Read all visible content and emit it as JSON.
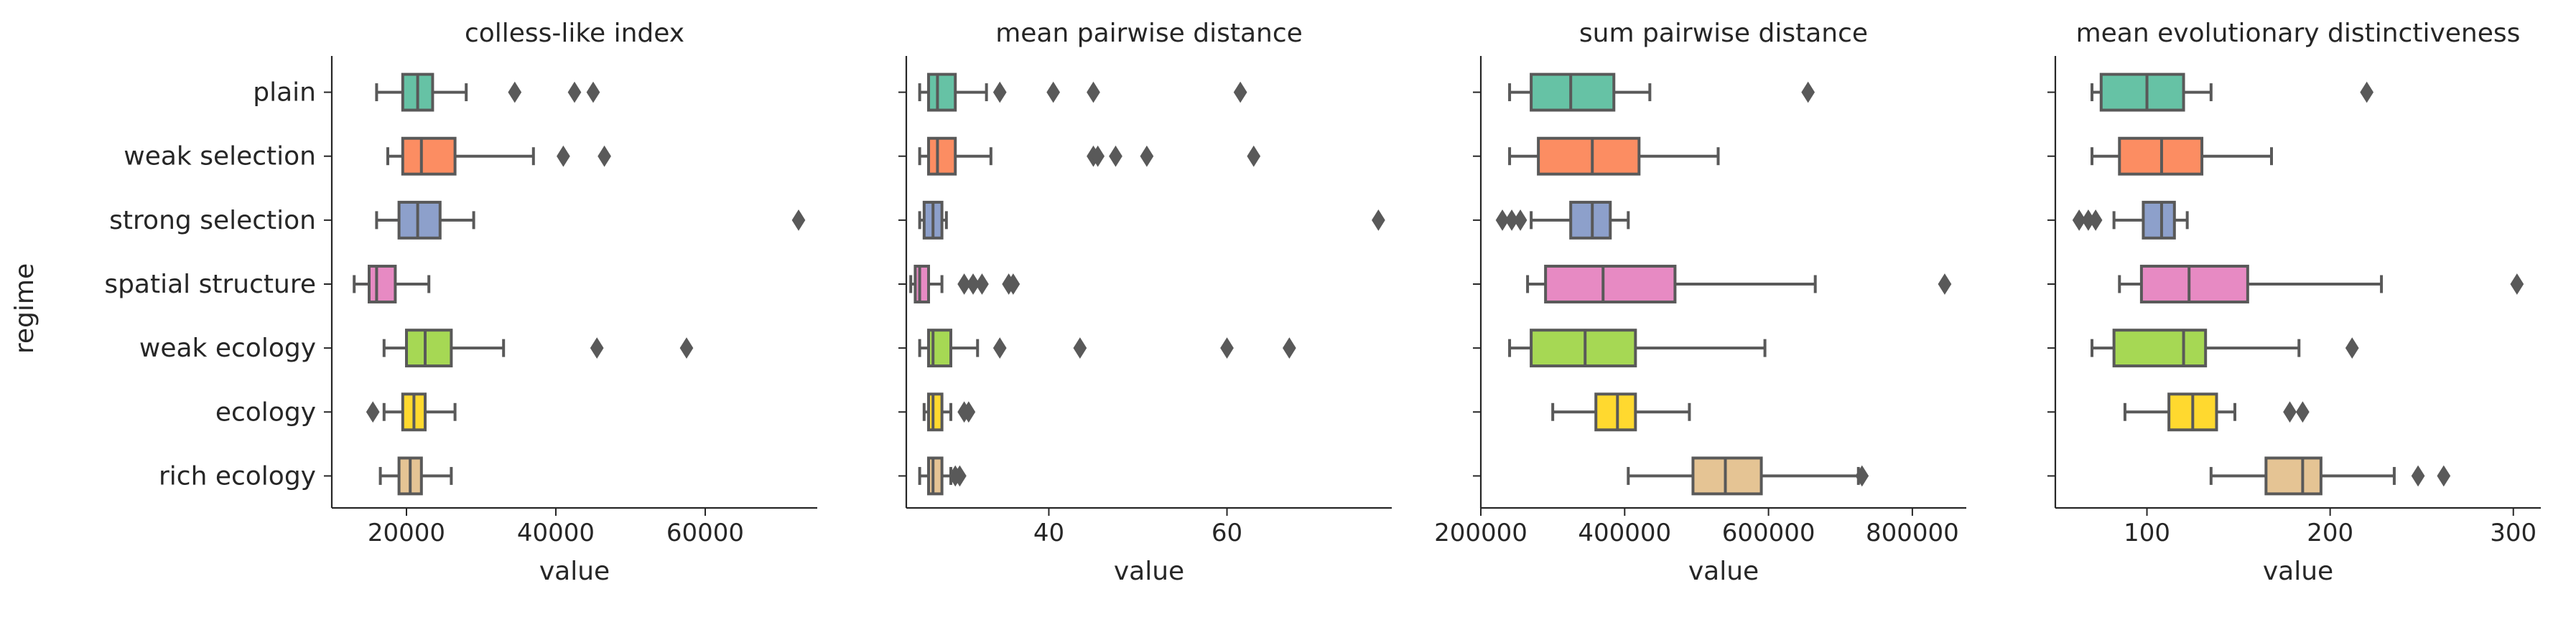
{
  "figure": {
    "ylabel": "regime",
    "categories": [
      "plain",
      "weak selection",
      "strong selection",
      "spatial structure",
      "weak ecology",
      "ecology",
      "rich ecology"
    ],
    "palette": [
      "#66c2a5",
      "#fc8d62",
      "#8da0cb",
      "#e78ac3",
      "#a6d854",
      "#ffd92f",
      "#e5c494"
    ],
    "line_color": "#595959"
  },
  "chart_data": [
    {
      "type": "box",
      "title": "colless-like index",
      "xlabel": "value",
      "xlim": [
        10000,
        75000
      ],
      "xticks": [
        20000,
        40000,
        60000
      ],
      "xtick_labels": [
        "20000",
        "40000",
        "60000"
      ],
      "boxes": [
        {
          "category": "plain",
          "whislo": 16000,
          "q1": 19500,
          "med": 21500,
          "q3": 23500,
          "whishi": 28000,
          "fliers": [
            34500,
            42500,
            45000
          ]
        },
        {
          "category": "weak selection",
          "whislo": 17500,
          "q1": 19500,
          "med": 22000,
          "q3": 26500,
          "whishi": 37000,
          "fliers": [
            41000,
            46500
          ]
        },
        {
          "category": "strong selection",
          "whislo": 16000,
          "q1": 19000,
          "med": 21500,
          "q3": 24500,
          "whishi": 29000,
          "fliers": [
            72500
          ]
        },
        {
          "category": "spatial structure",
          "whislo": 13000,
          "q1": 15000,
          "med": 16000,
          "q3": 18500,
          "whishi": 23000,
          "fliers": []
        },
        {
          "category": "weak ecology",
          "whislo": 17000,
          "q1": 20000,
          "med": 22500,
          "q3": 26000,
          "whishi": 33000,
          "fliers": [
            45500,
            57500
          ]
        },
        {
          "category": "ecology",
          "whislo": 17000,
          "q1": 19500,
          "med": 21000,
          "q3": 22500,
          "whishi": 26500,
          "fliers": [
            15500
          ]
        },
        {
          "category": "rich ecology",
          "whislo": 16500,
          "q1": 19000,
          "med": 20500,
          "q3": 22000,
          "whishi": 26000,
          "fliers": []
        }
      ]
    },
    {
      "type": "box",
      "title": "mean pairwise distance",
      "xlabel": "value",
      "xlim": [
        24,
        78.5
      ],
      "xticks": [
        40,
        60
      ],
      "xtick_labels": [
        "40",
        "60"
      ],
      "boxes": [
        {
          "category": "plain",
          "whislo": 25.5,
          "q1": 26.5,
          "med": 27.5,
          "q3": 29.5,
          "whishi": 33,
          "fliers": [
            34.5,
            40.5,
            45,
            61.5
          ]
        },
        {
          "category": "weak selection",
          "whislo": 25.5,
          "q1": 26.5,
          "med": 27.5,
          "q3": 29.5,
          "whishi": 33.5,
          "fliers": [
            45,
            45.5,
            47.5,
            51,
            63
          ]
        },
        {
          "category": "strong selection",
          "whislo": 25.5,
          "q1": 26,
          "med": 27,
          "q3": 28,
          "whishi": 28.5,
          "fliers": [
            77
          ]
        },
        {
          "category": "spatial structure",
          "whislo": 24.5,
          "q1": 25,
          "med": 25.5,
          "q3": 26.5,
          "whishi": 28,
          "fliers": [
            30.5,
            31.5,
            32.5,
            35.5,
            36
          ]
        },
        {
          "category": "weak ecology",
          "whislo": 25.5,
          "q1": 26.5,
          "med": 27,
          "q3": 29,
          "whishi": 32,
          "fliers": [
            34.5,
            43.5,
            60,
            67
          ]
        },
        {
          "category": "ecology",
          "whislo": 26,
          "q1": 26.5,
          "med": 27,
          "q3": 28,
          "whishi": 29,
          "fliers": [
            30.5,
            31
          ]
        },
        {
          "category": "rich ecology",
          "whislo": 25.5,
          "q1": 26.5,
          "med": 27,
          "q3": 28,
          "whishi": 29,
          "fliers": [
            29.5,
            30
          ]
        }
      ]
    },
    {
      "type": "box",
      "title": "sum pairwise distance",
      "xlabel": "value",
      "xlim": [
        200000,
        875000
      ],
      "xticks": [
        200000,
        400000,
        600000,
        800000
      ],
      "xtick_labels": [
        "200000",
        "400000",
        "600000",
        "800000"
      ],
      "boxes": [
        {
          "category": "plain",
          "whislo": 240000,
          "q1": 270000,
          "med": 325000,
          "q3": 385000,
          "whishi": 435000,
          "fliers": [
            655000
          ]
        },
        {
          "category": "weak selection",
          "whislo": 240000,
          "q1": 280000,
          "med": 355000,
          "q3": 420000,
          "whishi": 530000,
          "fliers": []
        },
        {
          "category": "strong selection",
          "whislo": 270000,
          "q1": 325000,
          "med": 355000,
          "q3": 380000,
          "whishi": 405000,
          "fliers": [
            230000,
            243000,
            255000
          ]
        },
        {
          "category": "spatial structure",
          "whislo": 265000,
          "q1": 290000,
          "med": 370000,
          "q3": 470000,
          "whishi": 665000,
          "fliers": [
            845000
          ]
        },
        {
          "category": "weak ecology",
          "whislo": 240000,
          "q1": 270000,
          "med": 345000,
          "q3": 415000,
          "whishi": 595000,
          "fliers": []
        },
        {
          "category": "ecology",
          "whislo": 300000,
          "q1": 360000,
          "med": 390000,
          "q3": 415000,
          "whishi": 490000,
          "fliers": []
        },
        {
          "category": "rich ecology",
          "whislo": 405000,
          "q1": 495000,
          "med": 540000,
          "q3": 590000,
          "whishi": 725000,
          "fliers": [
            730000
          ]
        }
      ]
    },
    {
      "type": "box",
      "title": "mean evolutionary distinctiveness",
      "xlabel": "value",
      "xlim": [
        50,
        315
      ],
      "xticks": [
        100,
        200,
        300
      ],
      "xtick_labels": [
        "100",
        "200",
        "300"
      ],
      "boxes": [
        {
          "category": "plain",
          "whislo": 70,
          "q1": 75,
          "med": 100,
          "q3": 120,
          "whishi": 135,
          "fliers": [
            220
          ]
        },
        {
          "category": "weak selection",
          "whislo": 70,
          "q1": 85,
          "med": 108,
          "q3": 130,
          "whishi": 168,
          "fliers": []
        },
        {
          "category": "strong selection",
          "whislo": 82,
          "q1": 98,
          "med": 108,
          "q3": 115,
          "whishi": 122,
          "fliers": [
            63,
            68,
            72
          ]
        },
        {
          "category": "spatial structure",
          "whislo": 85,
          "q1": 97,
          "med": 123,
          "q3": 155,
          "whishi": 228,
          "fliers": [
            302
          ]
        },
        {
          "category": "weak ecology",
          "whislo": 70,
          "q1": 82,
          "med": 120,
          "q3": 132,
          "whishi": 183,
          "fliers": [
            212
          ]
        },
        {
          "category": "ecology",
          "whislo": 88,
          "q1": 112,
          "med": 125,
          "q3": 138,
          "whishi": 148,
          "fliers": [
            178,
            185
          ]
        },
        {
          "category": "rich ecology",
          "whislo": 135,
          "q1": 165,
          "med": 185,
          "q3": 195,
          "whishi": 235,
          "fliers": [
            248,
            262
          ]
        }
      ]
    }
  ]
}
